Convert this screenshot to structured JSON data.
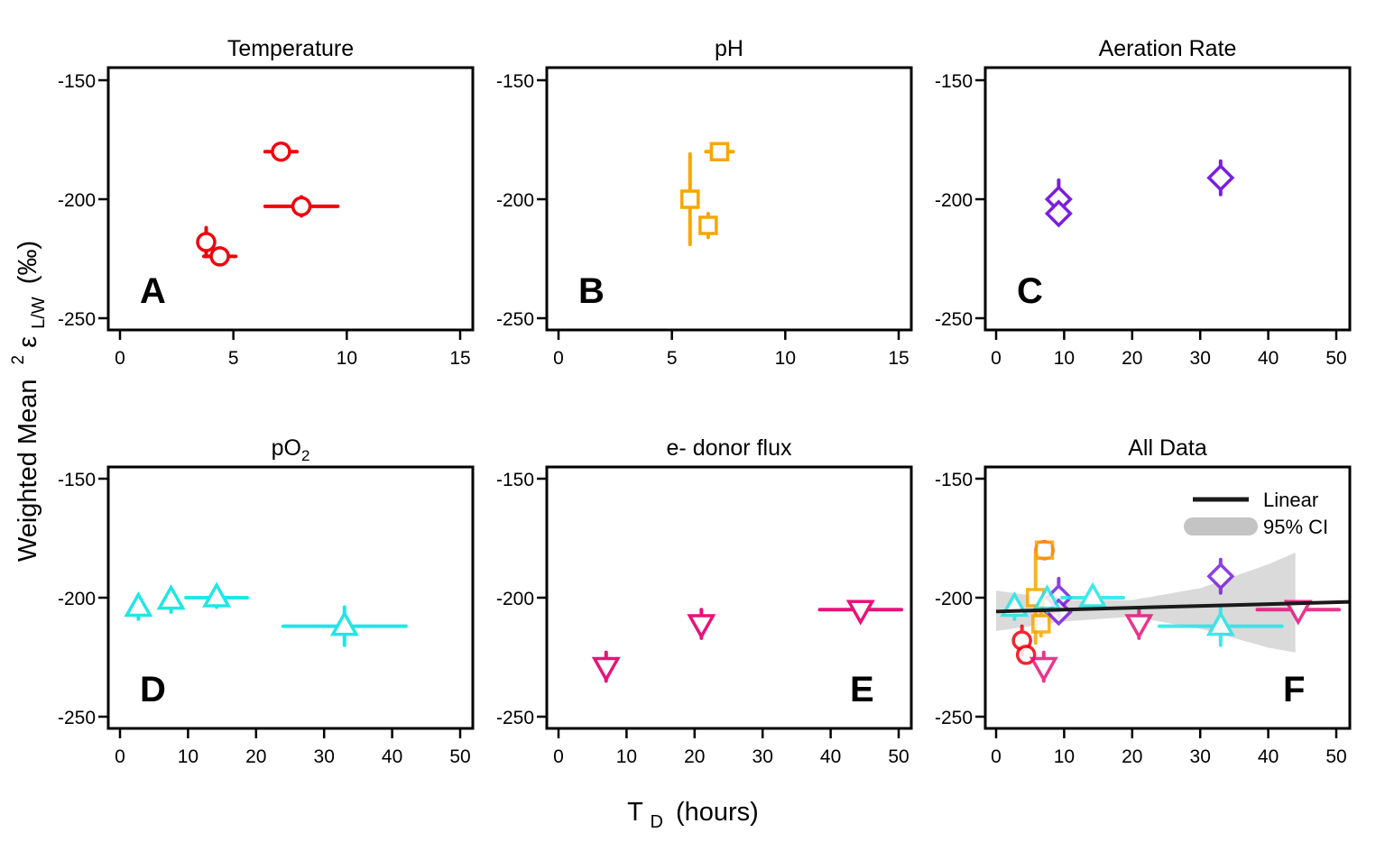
{
  "figure": {
    "ylabel_main": "Weighted Mean",
    "ylabel_super": "2",
    "ylabel_eps": "ε",
    "ylabel_sub": "L/W",
    "ylabel_unit": "(‰)",
    "xlabel_main": "T",
    "xlabel_sub": "D",
    "xlabel_unit": "(hours)"
  },
  "colors": {
    "temperature": "#f2000d",
    "ph": "#f7a600",
    "aeration": "#7a1ee0",
    "po2": "#20e6e6",
    "donor": "#e8127a",
    "fit_line": "#1a1a1a",
    "ci_band": "#d3d3d3"
  },
  "chart_data": [
    {
      "type": "scatter",
      "title": "Temperature",
      "panel_letter": "A",
      "marker": "circle",
      "color_key": "temperature",
      "xlim": [
        0,
        15
      ],
      "ylim": [
        -250,
        -150
      ],
      "xticks": [
        0,
        5,
        10,
        15
      ],
      "yticks": [
        -150,
        -200,
        -250
      ],
      "series": [
        {
          "points": [
            {
              "x": 7.1,
              "y": -180,
              "xerr": 0.7,
              "yerr": 2
            },
            {
              "x": 8.0,
              "y": -203,
              "xerr": 1.6,
              "yerr": 4
            },
            {
              "x": 3.8,
              "y": -218,
              "xerr": 0.3,
              "yerr": 6
            },
            {
              "x": 4.4,
              "y": -224,
              "xerr": 0.7,
              "yerr": 3
            }
          ]
        }
      ]
    },
    {
      "type": "scatter",
      "title": "pH",
      "panel_letter": "B",
      "marker": "square",
      "color_key": "ph",
      "xlim": [
        0,
        15
      ],
      "ylim": [
        -250,
        -150
      ],
      "xticks": [
        0,
        5,
        10,
        15
      ],
      "yticks": [
        -150,
        -200,
        -250
      ],
      "series": [
        {
          "points": [
            {
              "x": 7.1,
              "y": -180,
              "xerr": 0.6,
              "yerr": 2
            },
            {
              "x": 5.8,
              "y": -200,
              "xerr": 0.3,
              "yerr": 19
            },
            {
              "x": 6.6,
              "y": -211,
              "xerr": 0.3,
              "yerr": 5
            }
          ]
        }
      ]
    },
    {
      "type": "scatter",
      "title": "Aeration Rate",
      "panel_letter": "C",
      "marker": "diamond",
      "color_key": "aeration",
      "xlim": [
        0,
        50
      ],
      "ylim": [
        -250,
        -150
      ],
      "xticks": [
        0,
        10,
        20,
        30,
        40,
        50
      ],
      "yticks": [
        -150,
        -200,
        -250
      ],
      "series": [
        {
          "points": [
            {
              "x": 9.2,
              "y": -200,
              "xerr": 0.5,
              "yerr": 8
            },
            {
              "x": 9.2,
              "y": -206,
              "xerr": 0.5,
              "yerr": 3
            },
            {
              "x": 33.0,
              "y": -191,
              "xerr": 0.5,
              "yerr": 7
            }
          ]
        }
      ]
    },
    {
      "type": "scatter",
      "title": "pO",
      "title_sub": "2",
      "panel_letter": "D",
      "marker": "triangle-up",
      "color_key": "po2",
      "xlim": [
        0,
        50
      ],
      "ylim": [
        -250,
        -150
      ],
      "xticks": [
        0,
        10,
        20,
        30,
        40,
        50
      ],
      "yticks": [
        -150,
        -200,
        -250
      ],
      "series": [
        {
          "points": [
            {
              "x": 2.7,
              "y": -204,
              "xerr": 0.4,
              "yerr": 5
            },
            {
              "x": 7.5,
              "y": -201,
              "xerr": 0.4,
              "yerr": 5
            },
            {
              "x": 14.2,
              "y": -200,
              "xerr": 4.5,
              "yerr": 4
            },
            {
              "x": 33.0,
              "y": -212,
              "xerr": 9.0,
              "yerr": 8
            }
          ]
        }
      ]
    },
    {
      "type": "scatter",
      "title": "e- donor flux",
      "panel_letter": "E",
      "marker": "triangle-down",
      "color_key": "donor",
      "xlim": [
        0,
        50
      ],
      "ylim": [
        -250,
        -150
      ],
      "xticks": [
        0,
        10,
        20,
        30,
        40,
        50
      ],
      "yticks": [
        -150,
        -200,
        -250
      ],
      "series": [
        {
          "points": [
            {
              "x": 7.0,
              "y": -229,
              "xerr": 0.4,
              "yerr": 6
            },
            {
              "x": 21.0,
              "y": -211,
              "xerr": 0.4,
              "yerr": 6
            },
            {
              "x": 44.4,
              "y": -205,
              "xerr": 6.0,
              "yerr": 3
            }
          ]
        }
      ]
    },
    {
      "type": "scatter",
      "title": "All Data",
      "panel_letter": "F",
      "xlim": [
        0,
        50
      ],
      "ylim": [
        -250,
        -150
      ],
      "xticks": [
        0,
        10,
        20,
        30,
        40,
        50
      ],
      "yticks": [
        -150,
        -200,
        -250
      ],
      "legend": {
        "position": "top-right",
        "linear_label": "Linear",
        "ci_label": "95% CI"
      },
      "fit": {
        "slope": 0.076,
        "intercept": -205.8,
        "x": [
          0,
          53
        ]
      },
      "ci_band": {
        "x": [
          0,
          10,
          20,
          30,
          40,
          44
        ],
        "upper": [
          -197,
          -201,
          -201,
          -196,
          -186,
          -181
        ],
        "lower": [
          -214,
          -210,
          -208,
          -213,
          -221,
          -223
        ]
      },
      "series": [
        {
          "marker": "circle",
          "color_key": "temperature",
          "points": [
            {
              "x": 7.1,
              "y": -180,
              "xerr": 0.7,
              "yerr": 2
            },
            {
              "x": 8.0,
              "y": -203,
              "xerr": 1.6,
              "yerr": 4
            },
            {
              "x": 3.8,
              "y": -218,
              "xerr": 0.3,
              "yerr": 6
            },
            {
              "x": 4.4,
              "y": -224,
              "xerr": 0.7,
              "yerr": 3
            }
          ]
        },
        {
          "marker": "square",
          "color_key": "ph",
          "points": [
            {
              "x": 7.1,
              "y": -180,
              "xerr": 0.6,
              "yerr": 2
            },
            {
              "x": 5.8,
              "y": -200,
              "xerr": 0.3,
              "yerr": 19
            },
            {
              "x": 6.6,
              "y": -211,
              "xerr": 0.3,
              "yerr": 5
            }
          ]
        },
        {
          "marker": "diamond",
          "color_key": "aeration",
          "points": [
            {
              "x": 9.2,
              "y": -200,
              "xerr": 0.5,
              "yerr": 8
            },
            {
              "x": 9.2,
              "y": -206,
              "xerr": 0.5,
              "yerr": 3
            },
            {
              "x": 33.0,
              "y": -191,
              "xerr": 0.5,
              "yerr": 7
            }
          ]
        },
        {
          "marker": "triangle-up",
          "color_key": "po2",
          "points": [
            {
              "x": 2.7,
              "y": -204,
              "xerr": 0.4,
              "yerr": 5
            },
            {
              "x": 7.5,
              "y": -201,
              "xerr": 0.4,
              "yerr": 5
            },
            {
              "x": 14.2,
              "y": -200,
              "xerr": 4.5,
              "yerr": 4
            },
            {
              "x": 33.0,
              "y": -212,
              "xerr": 9.0,
              "yerr": 8
            }
          ]
        },
        {
          "marker": "triangle-down",
          "color_key": "donor",
          "points": [
            {
              "x": 7.0,
              "y": -229,
              "xerr": 0.4,
              "yerr": 6
            },
            {
              "x": 21.0,
              "y": -211,
              "xerr": 0.4,
              "yerr": 6
            },
            {
              "x": 44.4,
              "y": -205,
              "xerr": 6.0,
              "yerr": 3
            }
          ]
        }
      ]
    }
  ]
}
